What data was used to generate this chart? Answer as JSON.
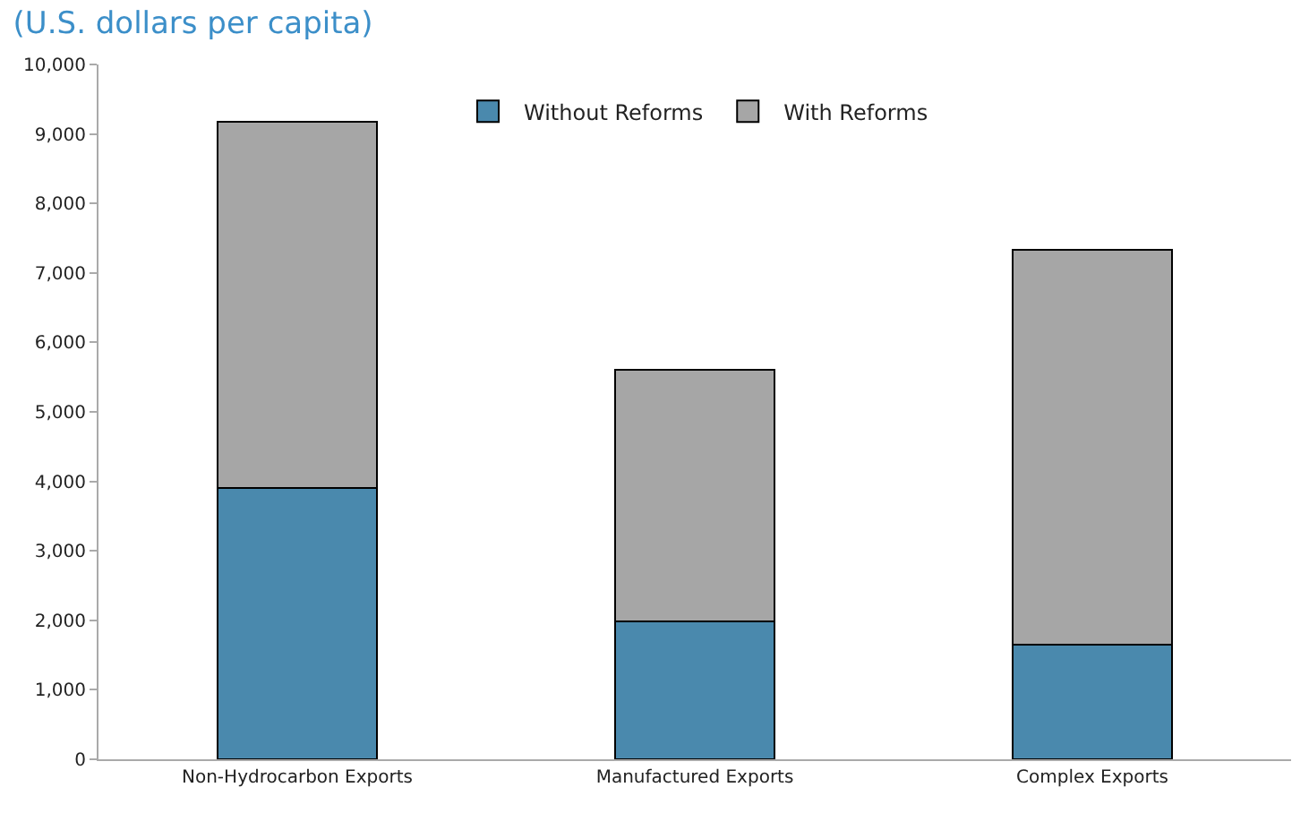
{
  "chart_data": {
    "type": "bar",
    "title": "(U.S. dollars per capita)",
    "categories": [
      "Non-Hydrocarbon Exports",
      "Manufactured Exports",
      "Complex Exports"
    ],
    "stacked": true,
    "series": [
      {
        "name": "Without Reforms",
        "color": "#4a89ad",
        "values": [
          3900,
          1980,
          1650
        ]
      },
      {
        "name": "With Reforms",
        "color": "#a6a6a6",
        "values": [
          5280,
          3620,
          5680
        ]
      }
    ],
    "ylim": [
      0,
      10000
    ],
    "yticks": [
      {
        "value": 0,
        "label": "0"
      },
      {
        "value": 1000,
        "label": "1,000"
      },
      {
        "value": 2000,
        "label": "2,000"
      },
      {
        "value": 3000,
        "label": "3,000"
      },
      {
        "value": 4000,
        "label": "4,000"
      },
      {
        "value": 5000,
        "label": "5,000"
      },
      {
        "value": 6000,
        "label": "6,000"
      },
      {
        "value": 7000,
        "label": "7,000"
      },
      {
        "value": 8000,
        "label": "8,000"
      },
      {
        "value": 9000,
        "label": "9,000"
      },
      {
        "value": 10000,
        "label": "10,000"
      }
    ],
    "grid": false,
    "legend": "top"
  }
}
